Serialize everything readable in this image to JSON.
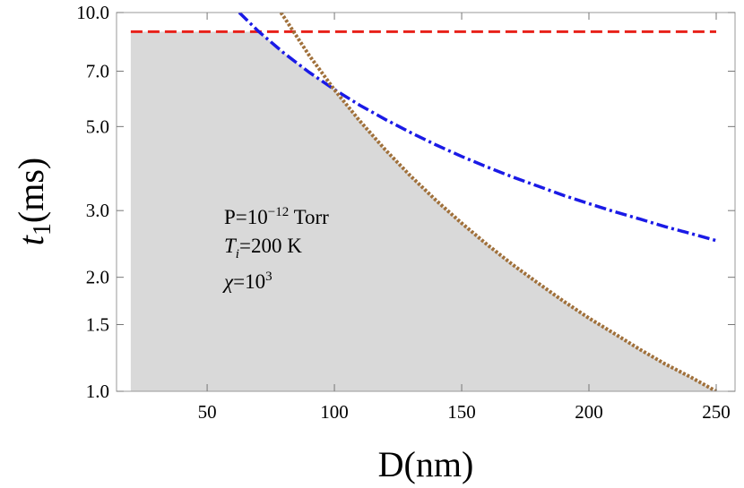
{
  "chart_data": {
    "type": "line",
    "xlabel": "D(nm)",
    "ylabel": [
      "t",
      "1",
      "(ms)"
    ],
    "annotations": [
      [
        "P=10",
        "−12",
        " Torr"
      ],
      [
        "T",
        "i",
        "=200 K"
      ],
      [
        "χ",
        "=10",
        "3"
      ]
    ],
    "xlim": [
      14.4,
      257.4
    ],
    "ylim": [
      1,
      10
    ],
    "log_y": true,
    "xticks": [
      50,
      100,
      150,
      200,
      250
    ],
    "yticks": [
      {
        "value": 1,
        "label": "1.0"
      },
      1.5,
      {
        "value": 2,
        "label": "2.0"
      },
      {
        "value": 3,
        "label": "3.0"
      },
      {
        "value": 5,
        "label": "5.0"
      },
      {
        "value": 7,
        "label": "7.0"
      },
      {
        "value": 10,
        "label": "10.0"
      }
    ],
    "series": [
      {
        "style": "area",
        "color": "#d9d9d9",
        "x": [
          20,
          70.3,
          80,
          90,
          100,
          110,
          120,
          130,
          140,
          150,
          160,
          170,
          180,
          190,
          200,
          210,
          220,
          230,
          240,
          250
        ],
        "values": [
          8.9,
          8.9,
          7.83,
          6.96,
          6.25,
          5.17,
          4.34,
          3.7,
          3.19,
          2.78,
          2.44,
          2.16,
          1.93,
          1.73,
          1.56,
          1.42,
          1.29,
          1.18,
          1.09,
          1.0
        ]
      },
      {
        "style": "dashed",
        "color": "#e8211a",
        "x": [
          20,
          250
        ],
        "values": [
          8.9,
          8.9
        ]
      },
      {
        "style": "dashdot",
        "color": "#1a1ae6",
        "x": [
          62.6,
          70,
          80,
          90,
          100,
          110,
          120,
          130,
          140,
          150,
          160,
          170,
          180,
          190,
          200,
          210,
          220,
          230,
          240,
          250
        ],
        "values": [
          10.0,
          8.94,
          7.83,
          6.96,
          6.26,
          5.69,
          5.22,
          4.82,
          4.47,
          4.17,
          3.91,
          3.68,
          3.48,
          3.29,
          3.13,
          2.98,
          2.85,
          2.72,
          2.61,
          2.5
        ]
      },
      {
        "style": "dotted",
        "color": "#a0703a",
        "x": [
          79,
          80,
          90,
          100,
          110,
          120,
          130,
          140,
          150,
          160,
          170,
          180,
          190,
          200,
          210,
          220,
          230,
          240,
          250
        ],
        "values": [
          10.0,
          9.77,
          7.72,
          6.25,
          5.17,
          4.34,
          3.7,
          3.19,
          2.78,
          2.44,
          2.16,
          1.93,
          1.73,
          1.56,
          1.42,
          1.29,
          1.18,
          1.09,
          1.0
        ]
      }
    ]
  }
}
